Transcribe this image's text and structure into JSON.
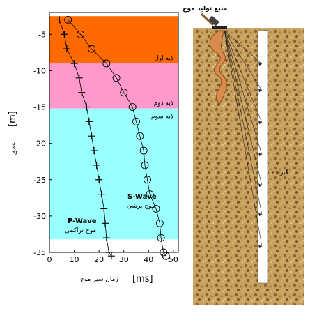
{
  "chart_data": {
    "type": "scatter",
    "xlabel_unit": "[ms]",
    "xlabel_text": "زمان سیر موج",
    "ylabel_unit": "[m]",
    "ylabel_text": "عمق",
    "xlim": [
      0,
      52
    ],
    "ylim": [
      -35,
      -2
    ],
    "x_ticks": [
      0,
      10,
      20,
      30,
      40,
      50
    ],
    "y_ticks": [
      -5,
      -10,
      -15,
      -20,
      -25,
      -30,
      -35
    ],
    "layers": [
      {
        "label": "لایه اول",
        "top": -2.5,
        "bottom": -9,
        "color": "#ff6a00"
      },
      {
        "label": "لایه دوم",
        "top": -9,
        "bottom": -15.2,
        "color": "#ff99cc"
      },
      {
        "label": "لایه سوم",
        "top": -15.2,
        "bottom": -33.2,
        "color": "#99ffff"
      }
    ],
    "series": [
      {
        "name": "S-Wave",
        "name_fa": "موج برشی",
        "marker": "circle",
        "x": [
          7.5,
          12.5,
          17,
          23,
          27,
          30,
          33.5,
          35,
          36.5,
          38,
          38.5,
          39.5,
          40.5,
          43,
          44.5,
          45,
          46,
          47
        ],
        "y": [
          -3,
          -5,
          -7,
          -9,
          -11,
          -13,
          -15,
          -17,
          -19,
          -21,
          -23,
          -25,
          -27,
          -29,
          -31,
          -33,
          -35,
          -35.5
        ]
      },
      {
        "name": "P-Wave",
        "name_fa": "موج تراکمی",
        "marker": "plus",
        "x": [
          4,
          6,
          7,
          10,
          12,
          13,
          15,
          16,
          17,
          18,
          19,
          20,
          21,
          22,
          22.5,
          23,
          24,
          25
        ],
        "y": [
          -3,
          -5,
          -7,
          -9,
          -11,
          -13,
          -15,
          -17,
          -19,
          -21,
          -23,
          -25,
          -27,
          -29,
          -31,
          -33,
          -35,
          -35.5
        ]
      }
    ]
  },
  "illustration": {
    "source_label": "منبع تولید موج",
    "receiver_label": "گیرنده"
  }
}
